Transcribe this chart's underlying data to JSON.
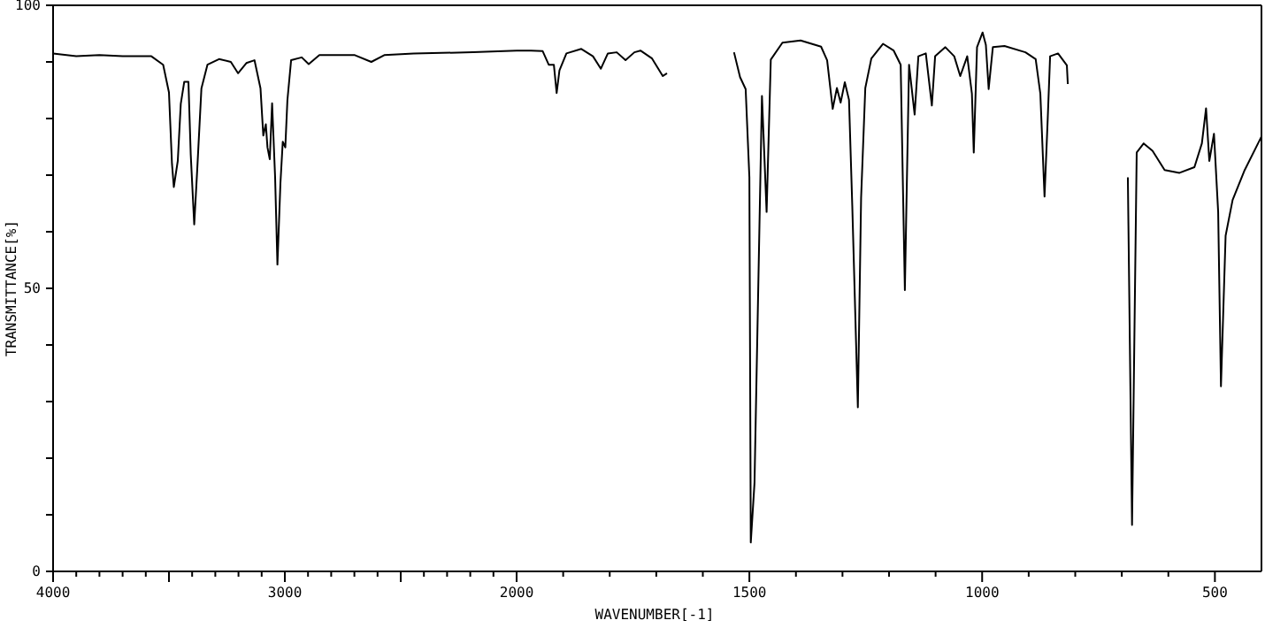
{
  "chart_data": [
    {
      "type": "line",
      "ylabel": "TRANSMITTANCE[%]",
      "xlim": [
        4000,
        2000
      ],
      "ylim": [
        0,
        100
      ],
      "xticks": [
        4000,
        {
          "value": 3900,
          "label": null
        },
        {
          "value": 3800,
          "label": null
        },
        {
          "value": 3700,
          "label": null
        },
        {
          "value": 3600,
          "label": null
        },
        {
          "value": 3500,
          "label": null
        },
        {
          "value": 3400,
          "label": null
        },
        {
          "value": 3300,
          "label": null
        },
        {
          "value": 3200,
          "label": null
        },
        {
          "value": 3100,
          "label": null
        },
        3000,
        {
          "value": 2900,
          "label": null
        },
        {
          "value": 2800,
          "label": null
        },
        {
          "value": 2700,
          "label": null
        },
        {
          "value": 2600,
          "label": null
        },
        {
          "value": 2500,
          "label": null
        },
        {
          "value": 2400,
          "label": null
        },
        {
          "value": 2300,
          "label": null
        },
        {
          "value": 2200,
          "label": null
        },
        {
          "value": 2100,
          "label": null
        },
        2000
      ],
      "yticks": [
        0,
        {
          "value": 10,
          "label": null
        },
        {
          "value": 20,
          "label": null
        },
        {
          "value": 30,
          "label": null
        },
        {
          "value": 40,
          "label": null
        },
        50,
        {
          "value": 60,
          "label": null
        },
        {
          "value": 70,
          "label": null
        },
        {
          "value": 80,
          "label": null
        },
        {
          "value": 90,
          "label": null
        },
        100
      ],
      "grid": false,
      "marker": "none",
      "line_style": "solid",
      "series": [
        {
          "color": "#000000",
          "x": [
            4000,
            3900,
            3800,
            3700,
            3576,
            3525,
            3500,
            3487,
            3479,
            3462,
            3449,
            3434,
            3416,
            3406,
            3391,
            3378,
            3360,
            3334,
            3284,
            3233,
            3202,
            3166,
            3131,
            3105,
            3093,
            3082,
            3075,
            3065,
            3055,
            3042,
            3032,
            3019,
            3009,
            2998,
            2989,
            2973,
            2927,
            2897,
            2851,
            2698,
            2627,
            2571,
            2444,
            2189,
            2000
          ],
          "values": [
            91.5,
            91,
            91.2,
            91,
            91,
            89.5,
            84.6,
            72,
            67.9,
            72.5,
            82.6,
            86.5,
            86.5,
            73.6,
            61.3,
            71,
            85.3,
            89.5,
            90.5,
            90,
            88,
            89.8,
            90.3,
            85.3,
            77,
            79,
            74.9,
            72.8,
            82.7,
            69.6,
            54.2,
            68.6,
            75.9,
            74.9,
            83.2,
            90.3,
            90.8,
            89.6,
            91.2,
            91.2,
            90,
            91.2,
            91.5,
            91.7,
            92
          ]
        }
      ]
    },
    {
      "type": "line",
      "xlabel": "WAVENUMBER[-1]",
      "tick_labels": "x",
      "xlim": [
        2000,
        400
      ],
      "ylim": [
        0,
        100
      ],
      "xticks": [
        {
          "value": 1900,
          "label": null
        },
        {
          "value": 1800,
          "label": null
        },
        {
          "value": 1700,
          "label": null
        },
        {
          "value": 1600,
          "label": null
        },
        1500,
        {
          "value": 1400,
          "label": null
        },
        {
          "value": 1300,
          "label": null
        },
        {
          "value": 1200,
          "label": null
        },
        {
          "value": 1100,
          "label": null
        },
        1000,
        {
          "value": 900,
          "label": null
        },
        {
          "value": 800,
          "label": null
        },
        {
          "value": 700,
          "label": null
        },
        {
          "value": 600,
          "label": null
        },
        500
      ],
      "marker": "none",
      "line_style": "solid",
      "series": [
        {
          "color": "#000000",
          "x": [
            2000,
            1969,
            1944,
            1931,
            1920,
            1914,
            1908,
            1893,
            1861,
            1836,
            1819,
            1804,
            1785,
            1766,
            1747,
            1734,
            1709,
            1686,
            1677,
            1600,
            1533,
            1520,
            1508,
            1500,
            1497,
            1489,
            1473,
            1463,
            1454,
            1429,
            1390,
            1346,
            1333,
            1321,
            1312,
            1304,
            1295,
            1286,
            1279,
            1267,
            1260,
            1251,
            1238,
            1213,
            1190,
            1175,
            1166,
            1157,
            1145,
            1137,
            1121,
            1108,
            1101,
            1079,
            1060,
            1047,
            1032,
            1022,
            1018,
            1011,
            999,
            992,
            986,
            977,
            952,
            907,
            885,
            875,
            866,
            859,
            854,
            837,
            818,
            816,
            750,
            687,
            678,
            668,
            653,
            634,
            608,
            576,
            544,
            528,
            519,
            512,
            502,
            493,
            487,
            477,
            462,
            436,
            405,
            400
          ],
          "values": [
            92,
            92,
            91.9,
            89.5,
            89.5,
            84.5,
            88.5,
            91.5,
            92.3,
            91,
            88.8,
            91.5,
            91.7,
            90.3,
            91.7,
            92,
            90.6,
            87.5,
            88,
            null,
            91.7,
            87.3,
            85.2,
            69.6,
            5.1,
            15.6,
            84,
            63.5,
            90.4,
            93.4,
            93.8,
            92.7,
            90.3,
            81.7,
            85.4,
            82.8,
            86.4,
            83.3,
            64.7,
            29,
            66,
            85.4,
            90.6,
            93.2,
            92,
            89.5,
            49.7,
            89.5,
            80.7,
            91,
            91.5,
            82.3,
            91,
            92.6,
            91,
            87.5,
            91,
            84.4,
            74,
            92.6,
            95.2,
            93,
            85.2,
            92.6,
            92.8,
            91.7,
            90.5,
            84.4,
            66.2,
            80.2,
            91,
            91.5,
            89.4,
            86.1,
            null,
            69.6,
            8.2,
            74,
            75.6,
            74.3,
            70.9,
            70.4,
            71.4,
            75.6,
            81.8,
            72.5,
            77.3,
            63.5,
            32.7,
            59.3,
            65.6,
            70.9,
            76,
            76.8
          ]
        }
      ]
    }
  ]
}
